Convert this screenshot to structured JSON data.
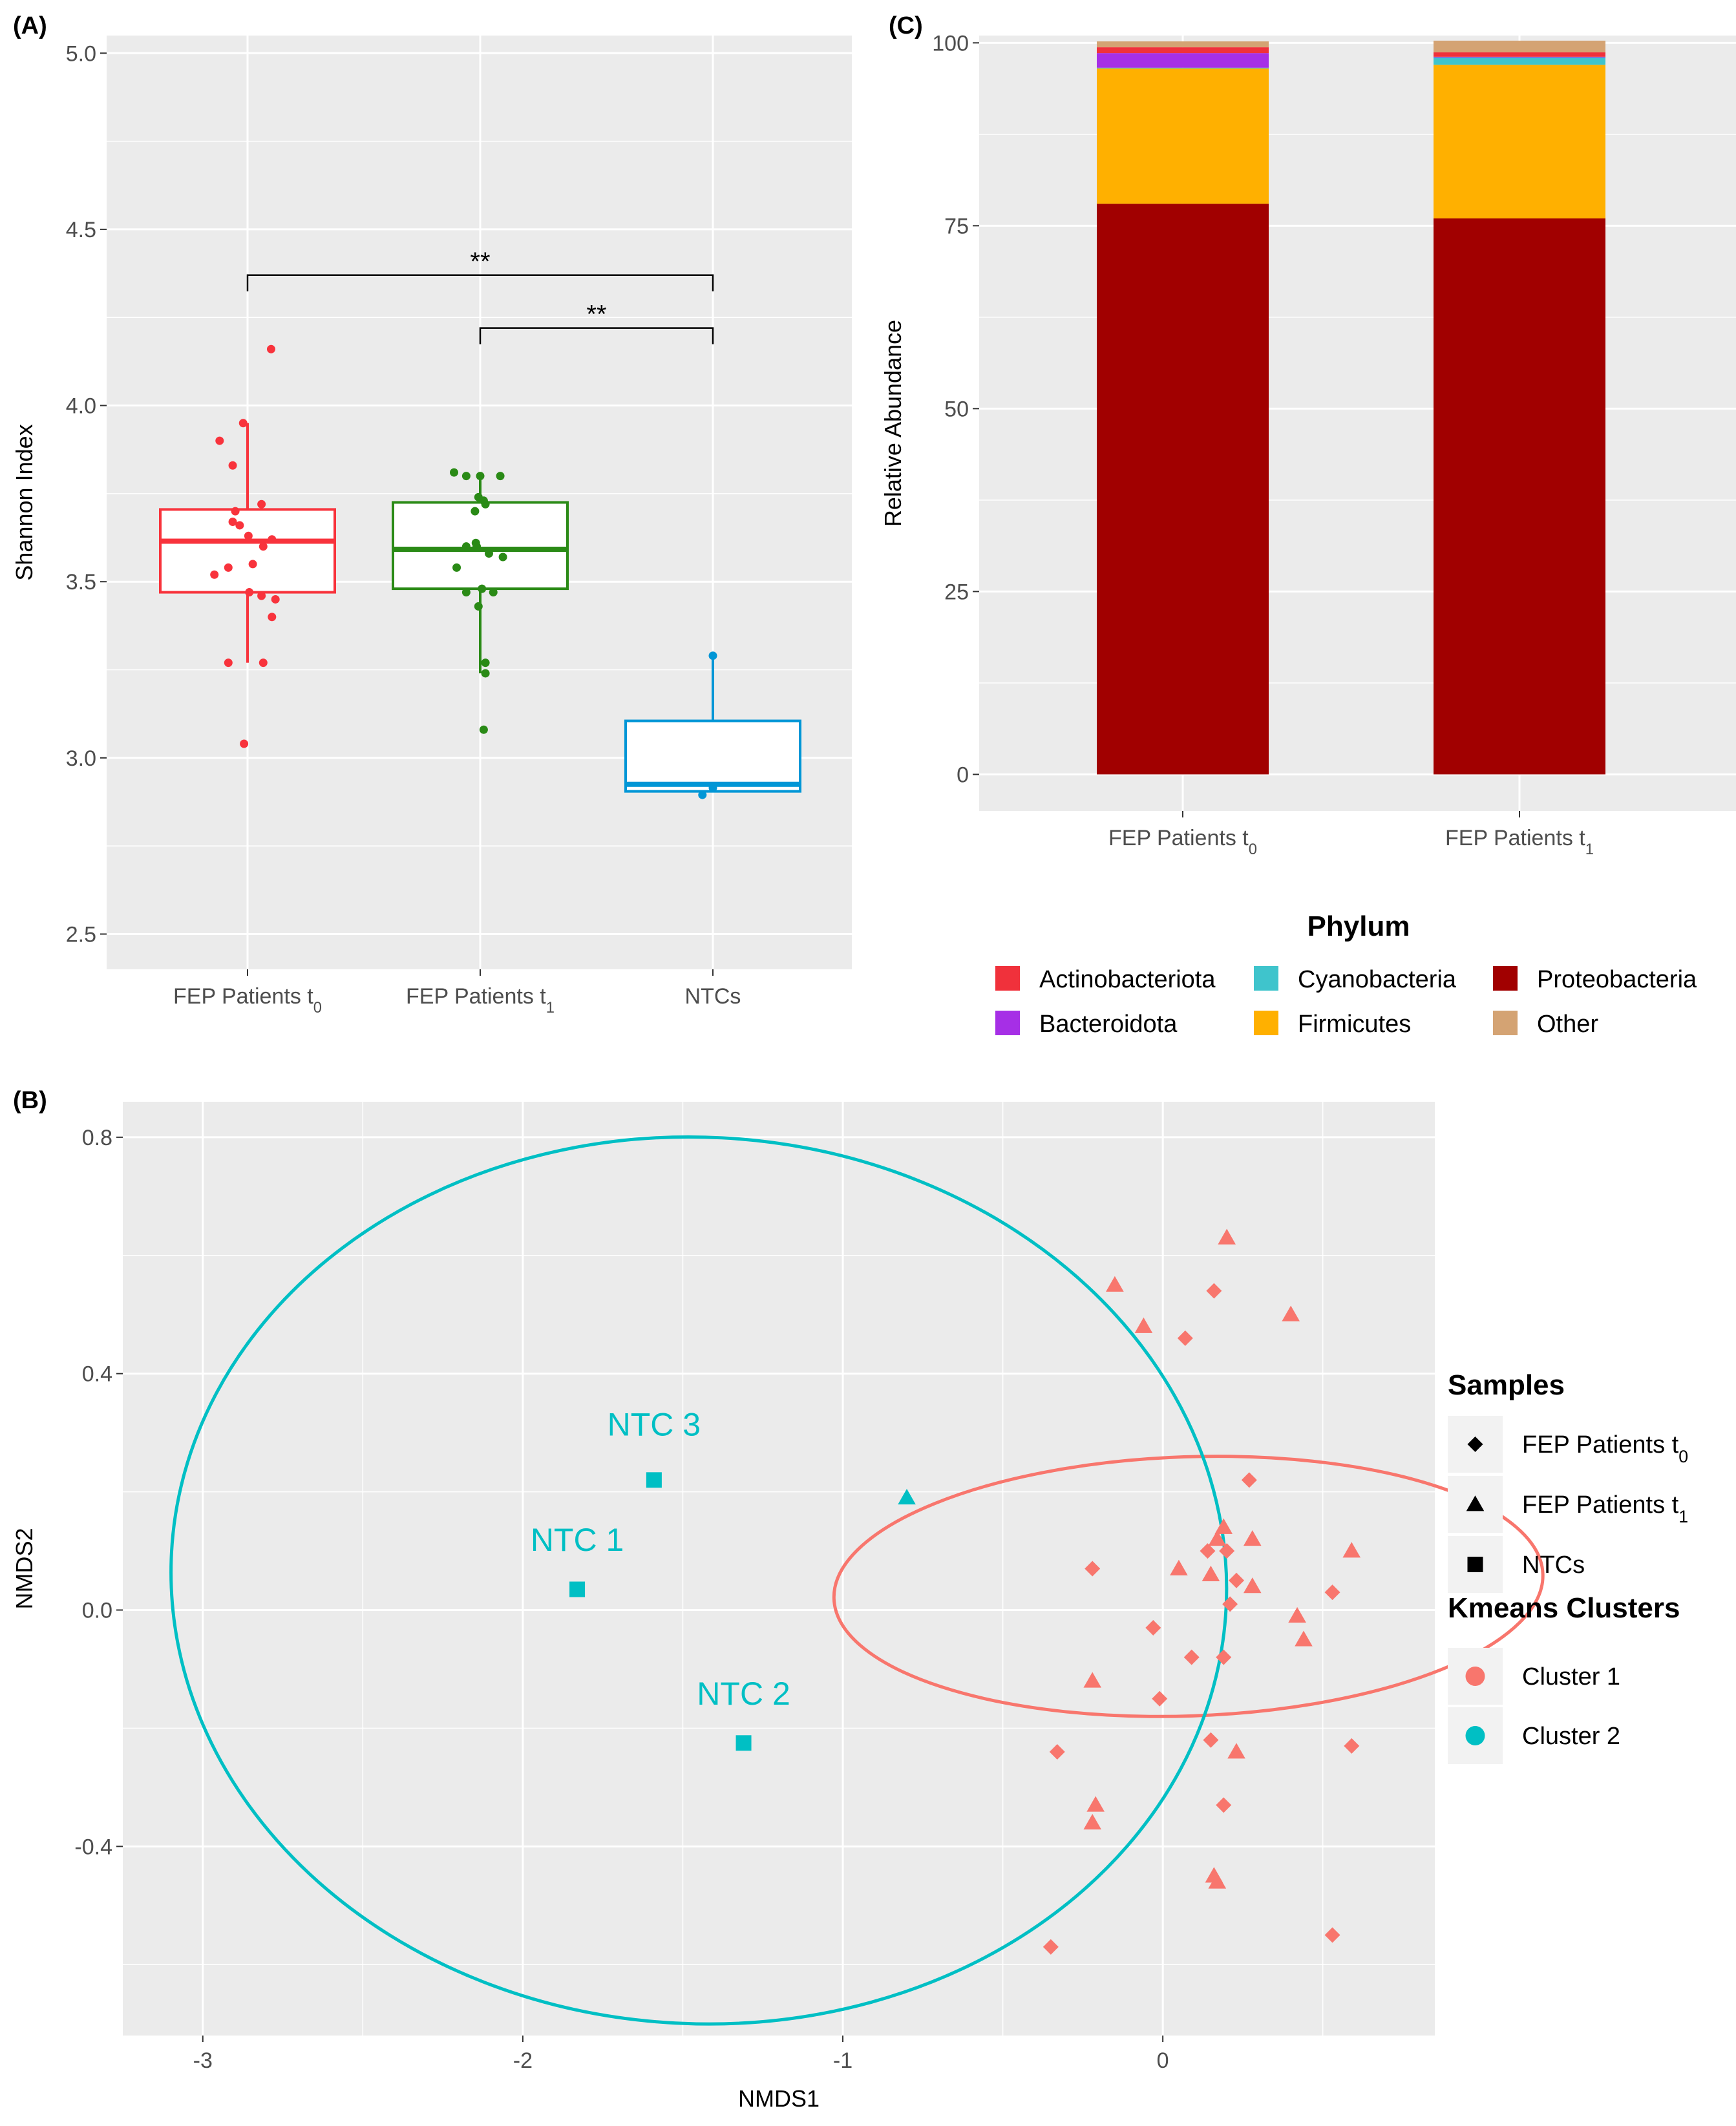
{
  "chart_data": [
    {
      "id": "A",
      "panel_label": "(A)",
      "type": "box",
      "ylabel": "Shannon Index",
      "ylim": [
        2.4,
        5.05
      ],
      "yticks": [
        "2.5",
        "3.0",
        "3.5",
        "4.0",
        "4.5",
        "5.0"
      ],
      "groups": [
        {
          "label_main": "FEP Patients t",
          "label_sub": "0",
          "color": "#F8333C",
          "q1": 3.47,
          "median": 3.615,
          "q3": 3.705,
          "whisker_low": 3.27,
          "whisker_high": 3.95,
          "points": [
            [
              -0.32,
              3.9
            ],
            [
              0.27,
              4.16
            ],
            [
              -0.17,
              3.83
            ],
            [
              -0.05,
              3.95
            ],
            [
              -0.14,
              3.7
            ],
            [
              0.16,
              3.72
            ],
            [
              -0.09,
              3.66
            ],
            [
              -0.17,
              3.67
            ],
            [
              0.01,
              3.63
            ],
            [
              -0.38,
              3.52
            ],
            [
              -0.22,
              3.54
            ],
            [
              0.18,
              3.6
            ],
            [
              0.06,
              3.55
            ],
            [
              0.28,
              3.62
            ],
            [
              0.16,
              3.46
            ],
            [
              0.02,
              3.47
            ],
            [
              0.32,
              3.45
            ],
            [
              0.28,
              3.4
            ],
            [
              -0.22,
              3.27
            ],
            [
              0.18,
              3.27
            ],
            [
              -0.04,
              3.04
            ]
          ]
        },
        {
          "label_main": "FEP Patients t",
          "label_sub": "1",
          "color": "#2A8A16",
          "q1": 3.48,
          "median": 3.592,
          "q3": 3.725,
          "whisker_low": 3.24,
          "whisker_high": 3.8,
          "points": [
            [
              -0.3,
              3.81
            ],
            [
              -0.16,
              3.8
            ],
            [
              0.0,
              3.8
            ],
            [
              0.23,
              3.8
            ],
            [
              -0.02,
              3.74
            ],
            [
              0.04,
              3.73
            ],
            [
              0.06,
              3.72
            ],
            [
              -0.06,
              3.7
            ],
            [
              -0.16,
              3.6
            ],
            [
              -0.05,
              3.61
            ],
            [
              0.26,
              3.57
            ],
            [
              0.1,
              3.58
            ],
            [
              -0.27,
              3.54
            ],
            [
              -0.04,
              3.6
            ],
            [
              0.02,
              3.48
            ],
            [
              -0.16,
              3.47
            ],
            [
              0.15,
              3.47
            ],
            [
              -0.02,
              3.43
            ],
            [
              0.06,
              3.27
            ],
            [
              0.06,
              3.24
            ],
            [
              0.04,
              3.08
            ]
          ]
        },
        {
          "label_main": "NTCs",
          "label_sub": "",
          "color": "#0096D6",
          "q1": 2.905,
          "median": 2.925,
          "q3": 3.105,
          "whisker_low": 2.905,
          "whisker_high": 3.29,
          "points": [
            [
              -0.12,
              2.895
            ],
            [
              0.0,
              2.915
            ],
            [
              0.0,
              3.29
            ]
          ]
        }
      ],
      "significance": [
        {
          "label": "**",
          "from": 0,
          "to": 2,
          "y": 4.37
        },
        {
          "label": "**",
          "from": 1,
          "to": 2,
          "y": 4.22
        }
      ]
    },
    {
      "id": "C",
      "panel_label": "(C)",
      "type": "stacked-bar",
      "ylabel": "Relative Abundance",
      "ylim": [
        -5,
        101
      ],
      "yticks": [
        0,
        25,
        50,
        75,
        100
      ],
      "categories": [
        {
          "label_main": "FEP Patients t",
          "label_sub": "0"
        },
        {
          "label_main": "FEP Patients t",
          "label_sub": "1"
        }
      ],
      "series": [
        {
          "name": "Proteobacteria",
          "color": "#A10000",
          "values": [
            78.0,
            76.0
          ]
        },
        {
          "name": "Firmicutes",
          "color": "#FFB000",
          "values": [
            18.5,
            21.0
          ]
        },
        {
          "name": "Cyanobacteria",
          "color": "#3FC4CC",
          "values": [
            0.1,
            1.0
          ]
        },
        {
          "name": "Bacteroidota",
          "color": "#A62FE6",
          "values": [
            2.0,
            0.1
          ]
        },
        {
          "name": "Actinobacteriota",
          "color": "#F0313B",
          "values": [
            0.8,
            0.6
          ]
        },
        {
          "name": "Other",
          "color": "#D4A373",
          "values": [
            0.8,
            1.6
          ]
        }
      ],
      "legend": {
        "title": "Phylum",
        "entries": [
          {
            "name": "Actinobacteriota",
            "color": "#F0313B"
          },
          {
            "name": "Cyanobacteria",
            "color": "#3FC4CC"
          },
          {
            "name": "Proteobacteria",
            "color": "#A10000"
          },
          {
            "name": "Bacteroidota",
            "color": "#A62FE6"
          },
          {
            "name": "Firmicutes",
            "color": "#FFB000"
          },
          {
            "name": "Other",
            "color": "#D4A373"
          }
        ]
      }
    },
    {
      "id": "B",
      "panel_label": "(B)",
      "type": "scatter",
      "xlabel": "NMDS1",
      "ylabel": "NMDS2",
      "xlim": [
        -3.25,
        0.85
      ],
      "ylim": [
        -0.72,
        0.86
      ],
      "xticks": [
        "-3",
        "-2",
        "-1",
        "0"
      ],
      "yticks": [
        "-0.4",
        "0.0",
        "0.4",
        "0.8"
      ],
      "clusters": [
        {
          "name": "Cluster 1",
          "color": "#F8766D",
          "ellipse": {
            "cx": 0.08,
            "cy": 0.04,
            "rx": 0.405,
            "ry": 0.6,
            "angle_deg": -88
          }
        },
        {
          "name": "Cluster 2",
          "color": "#00BFC4",
          "ellipse": {
            "cx": -1.45,
            "cy": 0.05,
            "rx": 1.65,
            "ry": 0.75,
            "angle_deg": -3
          }
        }
      ],
      "points": [
        {
          "x": 0.16,
          "y": 0.54,
          "shape": "diamond",
          "cluster": 1
        },
        {
          "x": 0.07,
          "y": 0.46,
          "shape": "diamond",
          "cluster": 1
        },
        {
          "x": 0.27,
          "y": 0.22,
          "shape": "diamond",
          "cluster": 1
        },
        {
          "x": 0.14,
          "y": 0.1,
          "shape": "diamond",
          "cluster": 1
        },
        {
          "x": 0.2,
          "y": 0.1,
          "shape": "diamond",
          "cluster": 1
        },
        {
          "x": 0.23,
          "y": 0.05,
          "shape": "diamond",
          "cluster": 1
        },
        {
          "x": -0.22,
          "y": 0.07,
          "shape": "diamond",
          "cluster": 1
        },
        {
          "x": 0.21,
          "y": 0.01,
          "shape": "diamond",
          "cluster": 1
        },
        {
          "x": 0.53,
          "y": 0.03,
          "shape": "diamond",
          "cluster": 1
        },
        {
          "x": -0.03,
          "y": -0.03,
          "shape": "diamond",
          "cluster": 1
        },
        {
          "x": 0.09,
          "y": -0.08,
          "shape": "diamond",
          "cluster": 1
        },
        {
          "x": 0.19,
          "y": -0.08,
          "shape": "diamond",
          "cluster": 1
        },
        {
          "x": -0.01,
          "y": -0.15,
          "shape": "diamond",
          "cluster": 1
        },
        {
          "x": 0.15,
          "y": -0.22,
          "shape": "diamond",
          "cluster": 1
        },
        {
          "x": -0.33,
          "y": -0.24,
          "shape": "diamond",
          "cluster": 1
        },
        {
          "x": 0.59,
          "y": -0.23,
          "shape": "diamond",
          "cluster": 1
        },
        {
          "x": 0.19,
          "y": -0.33,
          "shape": "diamond",
          "cluster": 1
        },
        {
          "x": 0.53,
          "y": -0.55,
          "shape": "diamond",
          "cluster": 1
        },
        {
          "x": -0.35,
          "y": -0.57,
          "shape": "diamond",
          "cluster": 1
        },
        {
          "x": 0.2,
          "y": 0.63,
          "shape": "triangle",
          "cluster": 1
        },
        {
          "x": -0.15,
          "y": 0.55,
          "shape": "triangle",
          "cluster": 1
        },
        {
          "x": 0.4,
          "y": 0.5,
          "shape": "triangle",
          "cluster": 1
        },
        {
          "x": -0.06,
          "y": 0.48,
          "shape": "triangle",
          "cluster": 1
        },
        {
          "x": 0.19,
          "y": 0.14,
          "shape": "triangle",
          "cluster": 1
        },
        {
          "x": 0.17,
          "y": 0.12,
          "shape": "triangle",
          "cluster": 1
        },
        {
          "x": 0.28,
          "y": 0.12,
          "shape": "triangle",
          "cluster": 1
        },
        {
          "x": 0.59,
          "y": 0.1,
          "shape": "triangle",
          "cluster": 1
        },
        {
          "x": 0.05,
          "y": 0.07,
          "shape": "triangle",
          "cluster": 1
        },
        {
          "x": 0.15,
          "y": 0.06,
          "shape": "triangle",
          "cluster": 1
        },
        {
          "x": 0.28,
          "y": 0.04,
          "shape": "triangle",
          "cluster": 1
        },
        {
          "x": 0.42,
          "y": -0.01,
          "shape": "triangle",
          "cluster": 1
        },
        {
          "x": 0.44,
          "y": -0.05,
          "shape": "triangle",
          "cluster": 1
        },
        {
          "x": -0.22,
          "y": -0.12,
          "shape": "triangle",
          "cluster": 1
        },
        {
          "x": 0.23,
          "y": -0.24,
          "shape": "triangle",
          "cluster": 1
        },
        {
          "x": -0.21,
          "y": -0.33,
          "shape": "triangle",
          "cluster": 1
        },
        {
          "x": -0.22,
          "y": -0.36,
          "shape": "triangle",
          "cluster": 1
        },
        {
          "x": 0.16,
          "y": -0.45,
          "shape": "triangle",
          "cluster": 1
        },
        {
          "x": 0.17,
          "y": -0.46,
          "shape": "triangle",
          "cluster": 1
        },
        {
          "x": -0.8,
          "y": 0.19,
          "shape": "triangle",
          "cluster": 2
        },
        {
          "x": -1.59,
          "y": 0.22,
          "shape": "square",
          "cluster": 2
        },
        {
          "x": -1.83,
          "y": 0.035,
          "shape": "square",
          "cluster": 2
        },
        {
          "x": -1.31,
          "y": -0.225,
          "shape": "square",
          "cluster": 2
        }
      ],
      "annotations": [
        {
          "text": "NTC 3",
          "x": -1.59,
          "y": 0.295
        },
        {
          "text": "NTC 1",
          "x": -1.83,
          "y": 0.1
        },
        {
          "text": "NTC 2",
          "x": -1.31,
          "y": -0.16
        }
      ],
      "legend_samples": {
        "title": "Samples",
        "entries": [
          {
            "shape": "diamond",
            "label_main": "FEP Patients t",
            "label_sub": "0"
          },
          {
            "shape": "triangle",
            "label_main": "FEP Patients t",
            "label_sub": "1"
          },
          {
            "shape": "square",
            "label_main": "NTCs",
            "label_sub": ""
          }
        ]
      },
      "legend_clusters": {
        "title": "Kmeans Clusters",
        "entries": [
          {
            "name": "Cluster 1",
            "color": "#F8766D"
          },
          {
            "name": "Cluster 2",
            "color": "#00BFC4"
          }
        ]
      }
    }
  ]
}
